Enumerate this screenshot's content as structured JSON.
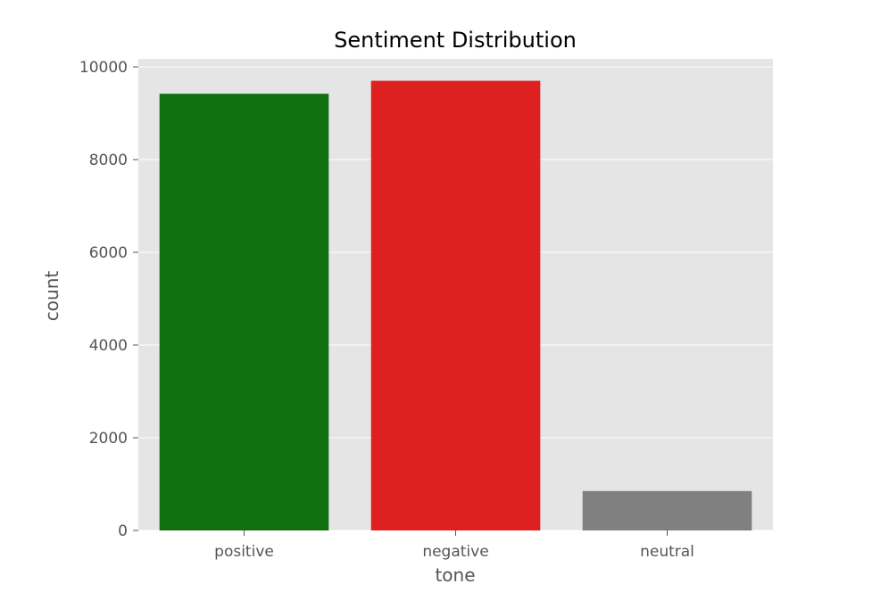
{
  "chart_data": {
    "type": "bar",
    "title": "Sentiment Distribution",
    "xlabel": "tone",
    "ylabel": "count",
    "categories": [
      "positive",
      "negative",
      "neutral"
    ],
    "values": [
      9420,
      9700,
      850
    ],
    "colors": [
      "#107010",
      "#df2020",
      "#808080"
    ],
    "ylim": [
      0,
      10000
    ],
    "yticks": [
      0,
      2000,
      4000,
      6000,
      8000,
      10000
    ],
    "grid": true,
    "background": "#e5e5e5",
    "legend": "none"
  }
}
